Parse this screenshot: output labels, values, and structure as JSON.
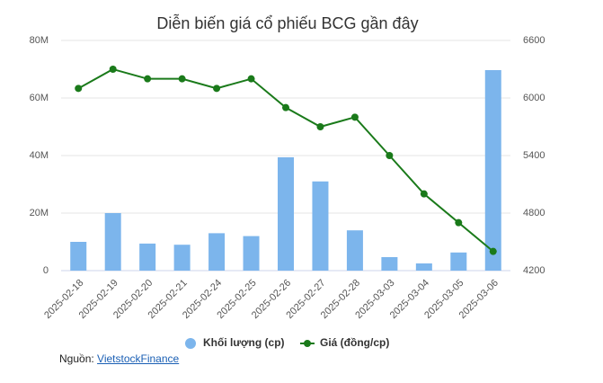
{
  "chart_data": {
    "type": "bar-line",
    "title": "Diễn biến giá cổ phiếu BCG gần đây",
    "categories": [
      "2025-02-18",
      "2025-02-19",
      "2025-02-20",
      "2025-02-21",
      "2025-02-24",
      "2025-02-25",
      "2025-02-26",
      "2025-02-27",
      "2025-02-28",
      "2025-03-03",
      "2025-03-04",
      "2025-03-05",
      "2025-03-06"
    ],
    "series": [
      {
        "name": "Khối lượng (cp)",
        "type": "bar",
        "color": "#7cb5ec",
        "values": [
          10000000,
          20000000,
          9400000,
          9000000,
          13000000,
          12000000,
          39400000,
          31000000,
          14000000,
          4700000,
          2500000,
          6300000,
          69700000
        ]
      },
      {
        "name": "Giá (đồng/cp)",
        "type": "line",
        "axis": "y2",
        "color": "#1a7a1a",
        "values": [
          6100,
          6300,
          6200,
          6200,
          6100,
          6200,
          5900,
          5700,
          5800,
          5400,
          5000,
          4700,
          4400
        ]
      }
    ],
    "ylim": [
      0,
      80000000
    ],
    "yticks": [
      0,
      {
        "value": 20000000,
        "label": "20M"
      },
      {
        "value": 40000000,
        "label": "40M"
      },
      {
        "value": 60000000,
        "label": "60M"
      },
      {
        "value": 80000000,
        "label": "80M"
      }
    ],
    "y2lim": [
      4200,
      6600
    ],
    "y2ticks": [
      4200,
      4800,
      5400,
      6000,
      6600
    ],
    "grid": true
  },
  "source": {
    "label": "Nguồn:",
    "link": "VietstockFinance"
  }
}
